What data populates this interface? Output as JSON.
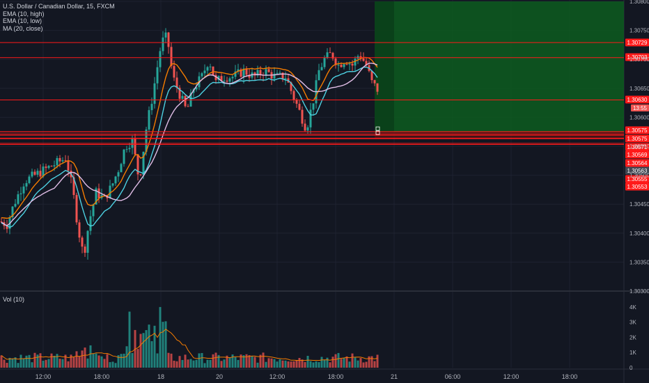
{
  "header": {
    "symbol": "U.S. Dollar / Canadian Dollar, 15, FXCM",
    "indicators": [
      "EMA (10, high)",
      "EMA (10, low)",
      "MA (20, close)"
    ]
  },
  "volume_pane": {
    "label": "Vol (10)"
  },
  "countdown": "13:55",
  "colors": {
    "background": "#131722",
    "grid": "#1e2230",
    "up": "#26a69a",
    "down": "#ef5350",
    "ema_high": "#f57c00",
    "ema_low": "#4dd0e1",
    "ma_close": "#e1bee7",
    "red_line": "#ff1a1a",
    "profit_zone": "#0d5c1e",
    "axis_text": "#b2b5be"
  },
  "chart_data": {
    "type": "candlestick",
    "price_axis": {
      "ylim": [
        1.303,
        1.308
      ],
      "ticks": [
        "1.30300",
        "1.30350",
        "1.30400",
        "1.30450",
        "1.30500",
        "1.30550",
        "1.30600",
        "1.30650",
        "1.30700",
        "1.30750",
        "1.30800"
      ]
    },
    "time_axis": {
      "labels": [
        "12:00",
        "18:00",
        "18",
        "20",
        "12:00",
        "18:00",
        "21",
        "06:00",
        "12:00",
        "18:00"
      ]
    },
    "volume_axis": {
      "ticks": [
        "0",
        "1K",
        "2K",
        "3K",
        "4K"
      ],
      "ylim": [
        0,
        4500
      ]
    },
    "horizontal_levels": [
      {
        "price": 1.30729,
        "label": "1.30729"
      },
      {
        "price": 1.30703,
        "label": "1.30703"
      },
      {
        "price": 1.3063,
        "label": "1.30630"
      },
      {
        "price": 1.30575,
        "label": "1.30575"
      },
      {
        "price": 1.30575,
        "label": "1.30575"
      },
      {
        "price": 1.30571,
        "label": "1.30571"
      },
      {
        "price": 1.30569,
        "label": "1.30569"
      },
      {
        "price": 1.30564,
        "label": "1.30564"
      },
      {
        "price": 1.30563,
        "label": "1.30563"
      },
      {
        "price": 1.30555,
        "label": "1.30555"
      },
      {
        "price": 1.30553,
        "label": "1.30553"
      }
    ],
    "price_path": [
      [
        0,
        1.3042
      ],
      [
        10,
        1.30415
      ],
      [
        20,
        1.3045
      ],
      [
        35,
        1.3049
      ],
      [
        50,
        1.305
      ],
      [
        65,
        1.3051
      ],
      [
        80,
        1.3052
      ],
      [
        95,
        1.3053
      ],
      [
        105,
        1.3047
      ],
      [
        112,
        1.3041
      ],
      [
        120,
        1.3036
      ],
      [
        128,
        1.3042
      ],
      [
        138,
        1.3047
      ],
      [
        150,
        1.3046
      ],
      [
        160,
        1.3048
      ],
      [
        170,
        1.3051
      ],
      [
        180,
        1.3055
      ],
      [
        190,
        1.3056
      ],
      [
        200,
        1.3049
      ],
      [
        210,
        1.3058
      ],
      [
        218,
        1.3063
      ],
      [
        225,
        1.3068
      ],
      [
        232,
        1.3073
      ],
      [
        240,
        1.3074
      ],
      [
        248,
        1.3067
      ],
      [
        258,
        1.3064
      ],
      [
        268,
        1.3061
      ],
      [
        278,
        1.3065
      ],
      [
        290,
        1.3067
      ],
      [
        300,
        1.307
      ],
      [
        310,
        1.3066
      ],
      [
        320,
        1.3067
      ],
      [
        335,
        1.3067
      ],
      [
        350,
        1.3068
      ],
      [
        365,
        1.3067
      ],
      [
        380,
        1.3068
      ],
      [
        395,
        1.3067
      ],
      [
        410,
        1.3067
      ],
      [
        420,
        1.3064
      ],
      [
        430,
        1.3061
      ],
      [
        440,
        1.3058
      ],
      [
        450,
        1.3063
      ],
      [
        458,
        1.3068
      ],
      [
        466,
        1.307
      ],
      [
        476,
        1.3071
      ],
      [
        486,
        1.3069
      ],
      [
        496,
        1.307
      ],
      [
        506,
        1.3069
      ],
      [
        516,
        1.3071
      ],
      [
        526,
        1.3069
      ],
      [
        534,
        1.3066
      ],
      [
        544,
        1.30645
      ]
    ],
    "position": {
      "entry_price": 1.30575,
      "target_price": 1.308,
      "stop_price": 1.30563
    }
  }
}
